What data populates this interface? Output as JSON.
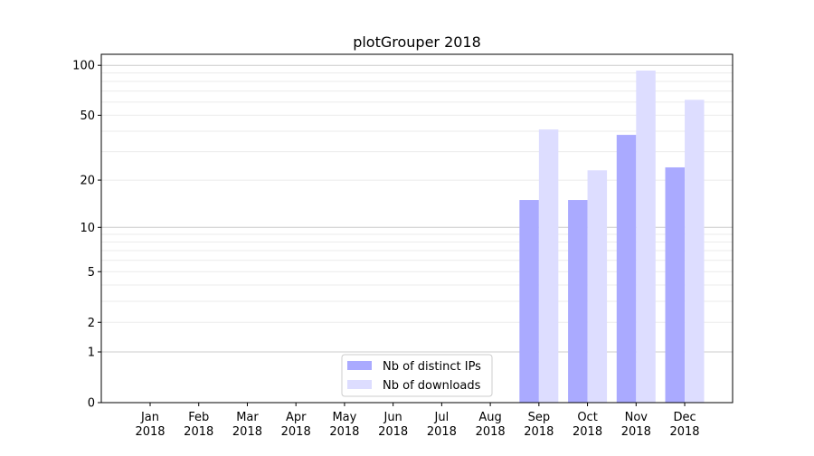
{
  "chart_data": {
    "type": "bar",
    "title": "plotGrouper 2018",
    "xlabel": "",
    "ylabel": "",
    "yscale": "symlog",
    "ylim": [
      0,
      120
    ],
    "yticks": [
      "0",
      "1",
      "2",
      "5",
      "10",
      "20",
      "50",
      "100"
    ],
    "grid": true,
    "legend_position": "lower-center",
    "categories": [
      "Jan\n2018",
      "Feb\n2018",
      "Mar\n2018",
      "Apr\n2018",
      "May\n2018",
      "Jun\n2018",
      "Jul\n2018",
      "Aug\n2018",
      "Sep\n2018",
      "Oct\n2018",
      "Nov\n2018",
      "Dec\n2018"
    ],
    "category_lines": [
      [
        "Jan",
        "2018"
      ],
      [
        "Feb",
        "2018"
      ],
      [
        "Mar",
        "2018"
      ],
      [
        "Apr",
        "2018"
      ],
      [
        "May",
        "2018"
      ],
      [
        "Jun",
        "2018"
      ],
      [
        "Jul",
        "2018"
      ],
      [
        "Aug",
        "2018"
      ],
      [
        "Sep",
        "2018"
      ],
      [
        "Oct",
        "2018"
      ],
      [
        "Nov",
        "2018"
      ],
      [
        "Dec",
        "2018"
      ]
    ],
    "series": [
      {
        "name": "Nb of distinct IPs",
        "color": "#aaaaff",
        "values": [
          0,
          0,
          0,
          0,
          0,
          0,
          0,
          0,
          15,
          15,
          38,
          24
        ]
      },
      {
        "name": "Nb of downloads",
        "color": "#ddddff",
        "values": [
          0,
          0,
          0,
          0,
          0,
          0,
          0,
          0,
          41,
          23,
          93,
          62
        ]
      }
    ]
  }
}
